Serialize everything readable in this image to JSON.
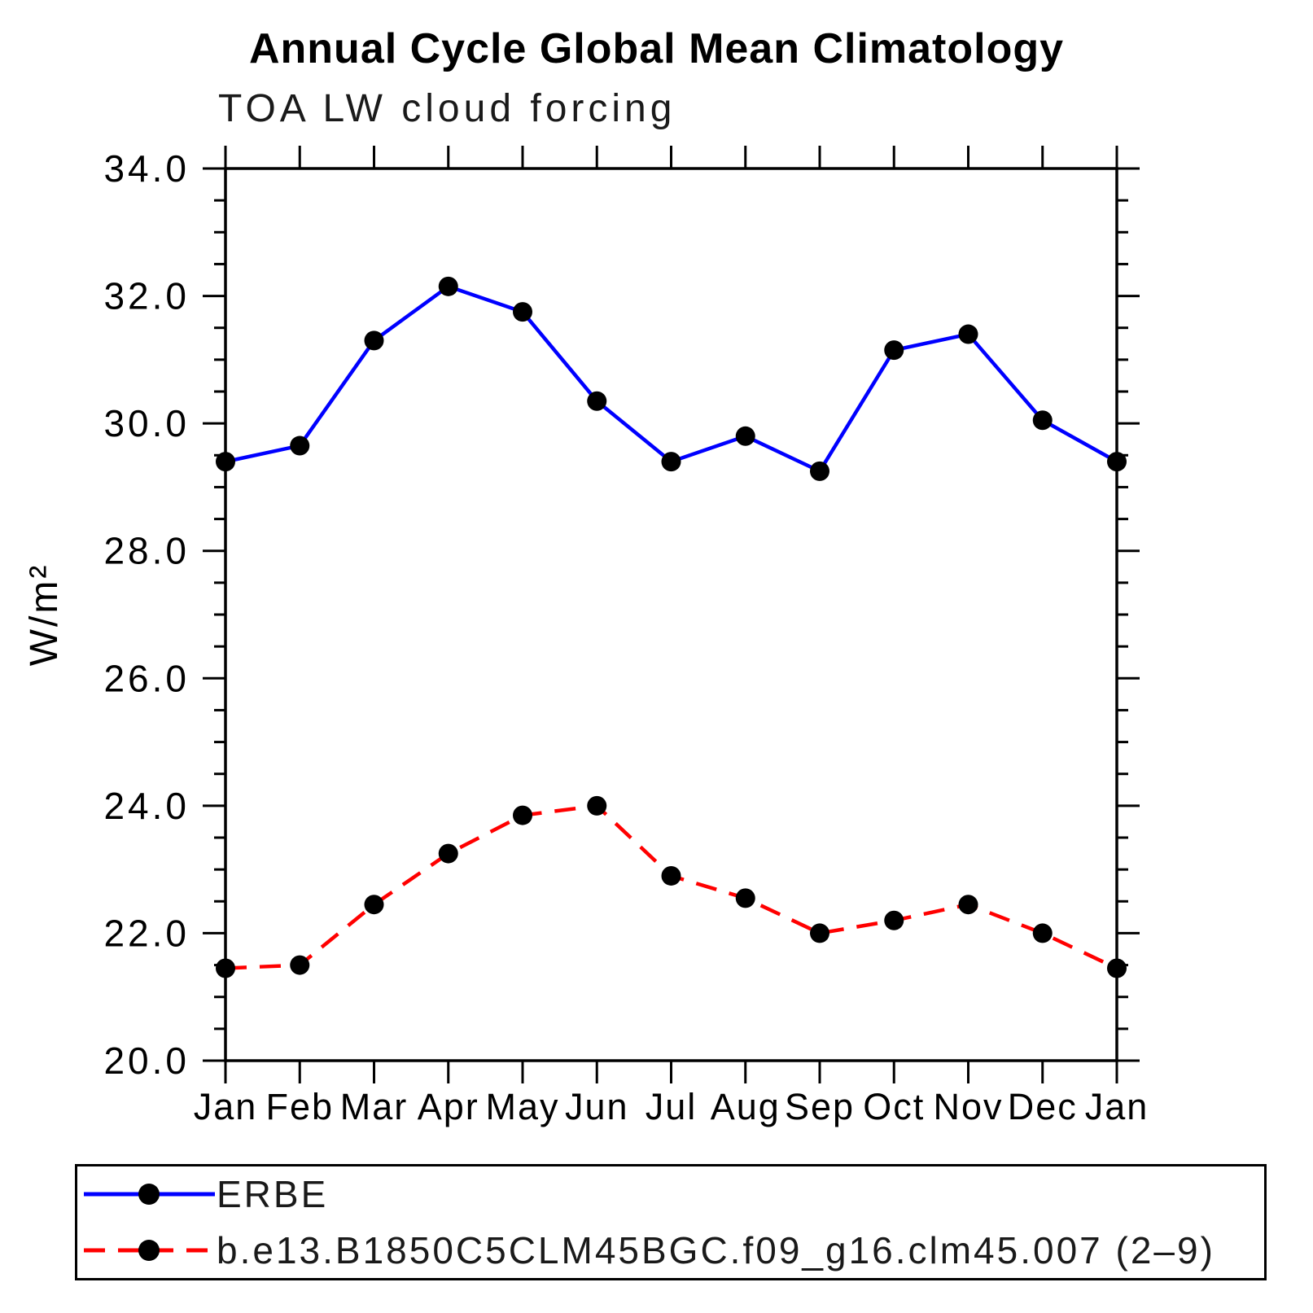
{
  "figure": {
    "background": "#ffffff",
    "frame_color": "#000000"
  },
  "header": {
    "title": "Annual Cycle Global Mean Climatology",
    "subtitle": "TOA LW cloud forcing"
  },
  "chart_data": {
    "type": "line",
    "title": "Annual Cycle Global Mean Climatology",
    "subtitle": "TOA LW cloud forcing",
    "xlabel": "",
    "ylabel": "W/m²",
    "ylim": [
      20.0,
      34.0
    ],
    "y_major_step": 2.0,
    "y_minor_step": 0.5,
    "y_tick_labels": [
      "20.0",
      "22.0",
      "24.0",
      "26.0",
      "28.0",
      "30.0",
      "32.0",
      "34.0"
    ],
    "categories": [
      "Jan",
      "Feb",
      "Mar",
      "Apr",
      "May",
      "Jun",
      "Jul",
      "Aug",
      "Sep",
      "Oct",
      "Nov",
      "Dec",
      "Jan"
    ],
    "grid": false,
    "legend_position": "bottom",
    "series": [
      {
        "name": "ERBE",
        "color": "#0000ff",
        "style": "solid",
        "marker": "filled-circle",
        "marker_color": "#000000",
        "values": [
          29.4,
          29.65,
          31.3,
          32.15,
          31.75,
          30.35,
          29.4,
          29.8,
          29.25,
          31.15,
          31.4,
          30.05,
          29.4
        ]
      },
      {
        "name": "b.e13.B1850C5CLM45BGC.f09_g16.clm45.007 (2–9)",
        "color": "#ff0000",
        "style": "dashed",
        "marker": "filled-circle",
        "marker_color": "#000000",
        "values": [
          21.45,
          21.5,
          22.45,
          23.25,
          23.85,
          24.0,
          22.9,
          22.55,
          22.0,
          22.2,
          22.45,
          22.0,
          21.45
        ]
      }
    ]
  }
}
